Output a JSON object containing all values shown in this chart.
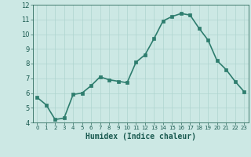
{
  "xlabel": "Humidex (Indice chaleur)",
  "ylabel": "",
  "x_values": [
    0,
    1,
    2,
    3,
    4,
    5,
    6,
    7,
    8,
    9,
    10,
    11,
    12,
    13,
    14,
    15,
    16,
    17,
    18,
    19,
    20,
    21,
    22,
    23
  ],
  "y_values": [
    5.7,
    5.2,
    4.2,
    4.3,
    5.9,
    6.0,
    6.5,
    7.1,
    6.9,
    6.8,
    6.7,
    8.1,
    8.6,
    9.7,
    10.9,
    11.2,
    11.4,
    11.3,
    10.4,
    9.6,
    8.2,
    7.6,
    6.8,
    6.1
  ],
  "ylim": [
    4,
    12
  ],
  "xlim": [
    -0.5,
    23.5
  ],
  "yticks": [
    4,
    5,
    6,
    7,
    8,
    9,
    10,
    11,
    12
  ],
  "xticks": [
    0,
    1,
    2,
    3,
    4,
    5,
    6,
    7,
    8,
    9,
    10,
    11,
    12,
    13,
    14,
    15,
    16,
    17,
    18,
    19,
    20,
    21,
    22,
    23
  ],
  "line_color": "#2e7d6e",
  "marker_color": "#2e7d6e",
  "bg_color": "#cce8e4",
  "grid_color": "#aed4cf",
  "tick_color": "#2e6b5e",
  "label_color": "#1a5a50",
  "marker": "s",
  "marker_size": 2.5,
  "line_width": 1.2
}
